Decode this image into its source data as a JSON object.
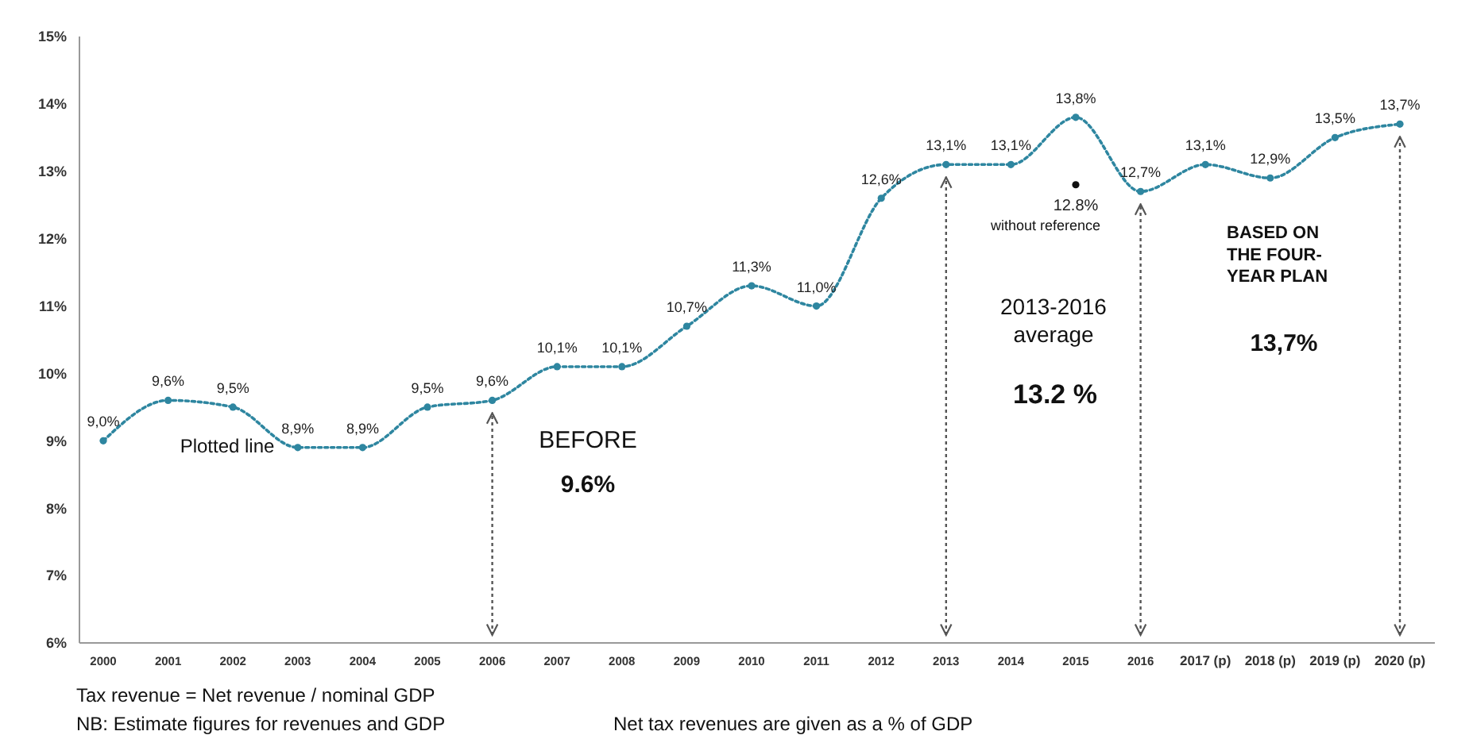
{
  "chart_data": {
    "type": "line",
    "categories": [
      "2000",
      "2001",
      "2002",
      "2003",
      "2004",
      "2005",
      "2006",
      "2007",
      "2008",
      "2009",
      "2010",
      "2011",
      "2012",
      "2013",
      "2014",
      "2015",
      "2016",
      "2017 (p)",
      "2018 (p)",
      "2019 (p)",
      "2020 (p)"
    ],
    "series": [
      {
        "color": "#2e86a0",
        "values": [
          9.0,
          9.6,
          9.5,
          8.9,
          8.9,
          9.5,
          9.6,
          10.1,
          10.1,
          10.7,
          11.3,
          11.0,
          12.6,
          13.1,
          13.1,
          13.8,
          12.7,
          13.1,
          12.9,
          13.5,
          13.7
        ],
        "value_labels": [
          "9,0%",
          "9,6%",
          "9,5%",
          "8,9%",
          "8,9%",
          "9,5%",
          "9,6%",
          "10,1%",
          "10,1%",
          "10,7%",
          "11,3%",
          "11,0%",
          "12,6%",
          "13,1%",
          "13,1%",
          "13,8%",
          "12,7%",
          "13,1%",
          "12,9%",
          "13,5%",
          "13,7%"
        ]
      },
      {
        "type": "scatter",
        "color": "#111111",
        "values": [
          null,
          null,
          null,
          null,
          null,
          null,
          null,
          null,
          null,
          null,
          null,
          null,
          null,
          null,
          null,
          12.8,
          null,
          null,
          null,
          null,
          null
        ],
        "value_labels": [
          null,
          null,
          null,
          null,
          null,
          null,
          null,
          null,
          null,
          null,
          null,
          null,
          null,
          null,
          null,
          "12.8%",
          null,
          null,
          null,
          null,
          null
        ]
      }
    ],
    "ylim": [
      6,
      15
    ],
    "yticks": [
      {
        "value": 6,
        "label": "6%"
      },
      {
        "value": 7,
        "label": "7%"
      },
      {
        "value": 8,
        "label": "8%"
      },
      {
        "value": 9,
        "label": "9%"
      },
      {
        "value": 10,
        "label": "10%"
      },
      {
        "value": 11,
        "label": "11%"
      },
      {
        "value": 12,
        "label": "12%"
      },
      {
        "value": 13,
        "label": "13%"
      },
      {
        "value": 14,
        "label": "14%"
      },
      {
        "value": 15,
        "label": "15%"
      }
    ],
    "marker": "circle",
    "line_style": "dotted",
    "grid": false,
    "ref_lines": [
      {
        "axis": "x",
        "value": "2006",
        "line_style": "dotted",
        "color": "#555555"
      },
      {
        "axis": "x",
        "value": "2013",
        "line_style": "dotted",
        "color": "#555555"
      },
      {
        "axis": "x",
        "value": "2016",
        "line_style": "dotted",
        "color": "#555555"
      },
      {
        "axis": "x",
        "value": "2020 (p)",
        "line_style": "dotted",
        "color": "#555555"
      }
    ],
    "annotations": [
      "Plotted line",
      "BEFORE",
      "9.6%",
      "2013-2016\naverage",
      "13.2 %",
      "without reference",
      "BASED ON\nTHE FOUR-\nYEAR PLAN",
      "13,7%",
      "Tax revenue = Net revenue / nominal GDP",
      "NB: Estimate figures for revenues and GDP",
      "Net tax revenues are given as a % of GDP"
    ]
  }
}
